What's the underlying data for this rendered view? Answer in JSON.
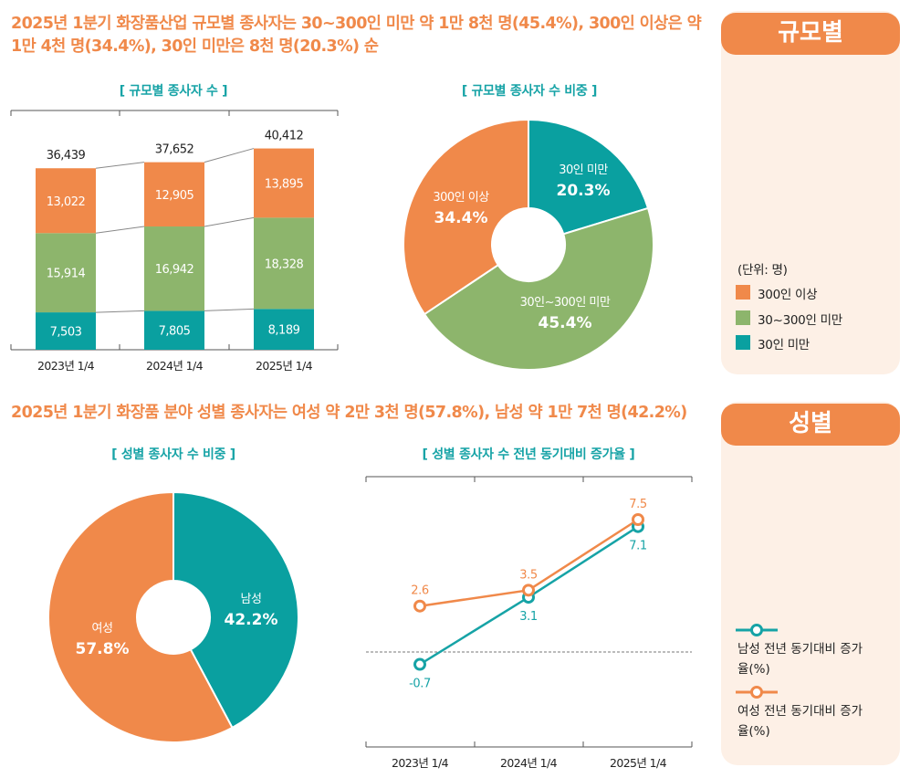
{
  "headlines": {
    "size": "2025년 1분기 화장품산업 규모별 종사자는 30~300인 미만 약 1만 8천 명(45.4%), 300인 이상은 약 1만 4천 명(34.4%), 30인 미만은 8천 명(20.3%) 순",
    "gender": "2025년 1분기 화장품 분야 성별 종사자는 여성 약 2만 3천 명(57.8%), 남성 약 1만 7천 명(42.2%)"
  },
  "side_panels": {
    "size": {
      "tab": "규모별",
      "unit": "(단위: 명)",
      "legend": [
        {
          "label": "300인 이상",
          "color": "#f0894a"
        },
        {
          "label": "30~300인 미만",
          "color": "#8db56c"
        },
        {
          "label": "30인 미만",
          "color": "#0aa0a0"
        }
      ]
    },
    "gender": {
      "tab": "성별",
      "legend": [
        {
          "label": "남성 전년 동기대비 증가율(%)",
          "color": "#16a3a6"
        },
        {
          "label": "여성 전년 동기대비 증가율(%)",
          "color": "#f0894a"
        }
      ]
    }
  },
  "chart_data": [
    {
      "type": "bar",
      "stacked": true,
      "title": "[ 규모별 종사자 수 ]",
      "categories": [
        "2023년 1/4",
        "2024년 1/4",
        "2025년 1/4"
      ],
      "series": [
        {
          "name": "30인 미만",
          "values": [
            7503,
            7805,
            8189
          ],
          "labels": [
            "7,503",
            "7,805",
            "8,189"
          ],
          "color": "#0aa0a0"
        },
        {
          "name": "30~300인 미만",
          "values": [
            15914,
            16942,
            18328
          ],
          "labels": [
            "15,914",
            "16,942",
            "18,328"
          ],
          "color": "#8db56c"
        },
        {
          "name": "300인 이상",
          "values": [
            13022,
            12905,
            13895
          ],
          "labels": [
            "13,022",
            "12,905",
            "13,895"
          ],
          "color": "#f0894a"
        }
      ],
      "totals": [
        36439,
        37652,
        40412
      ],
      "total_labels": [
        "36,439",
        "37,652",
        "40,412"
      ],
      "ylim": [
        0,
        44000
      ]
    },
    {
      "type": "pie",
      "donut": true,
      "title": "[ 규모별 종사자 수 비중 ]",
      "slices": [
        {
          "name": "30인 미만",
          "value": 20.3,
          "value_label": "20.3%",
          "color": "#0aa0a0"
        },
        {
          "name": "30인~300인 미만",
          "value": 45.4,
          "value_label": "45.4%",
          "color": "#8db56c"
        },
        {
          "name": "300인 이상",
          "value": 34.4,
          "value_label": "34.4%",
          "color": "#f0894a"
        }
      ]
    },
    {
      "type": "pie",
      "donut": true,
      "title": "[ 성별 종사자 수 비중 ]",
      "slices": [
        {
          "name": "남성",
          "value": 42.2,
          "value_label": "42.2%",
          "color": "#0aa0a0"
        },
        {
          "name": "여성",
          "value": 57.8,
          "value_label": "57.8%",
          "color": "#f0894a"
        }
      ]
    },
    {
      "type": "line",
      "title": "[ 성별 종사자 수 전년 동기대비 증가율 ]",
      "categories": [
        "2023년 1/4",
        "2024년 1/4",
        "2025년 1/4"
      ],
      "series": [
        {
          "name": "남성",
          "values": [
            -0.7,
            3.1,
            7.1
          ],
          "labels": [
            "-0.7",
            "3.1",
            "7.1"
          ],
          "color": "#16a3a6"
        },
        {
          "name": "여성",
          "values": [
            2.6,
            3.5,
            7.5
          ],
          "labels": [
            "2.6",
            "3.5",
            "7.5"
          ],
          "color": "#f0894a"
        }
      ],
      "ylim": [
        -4,
        10
      ]
    }
  ]
}
